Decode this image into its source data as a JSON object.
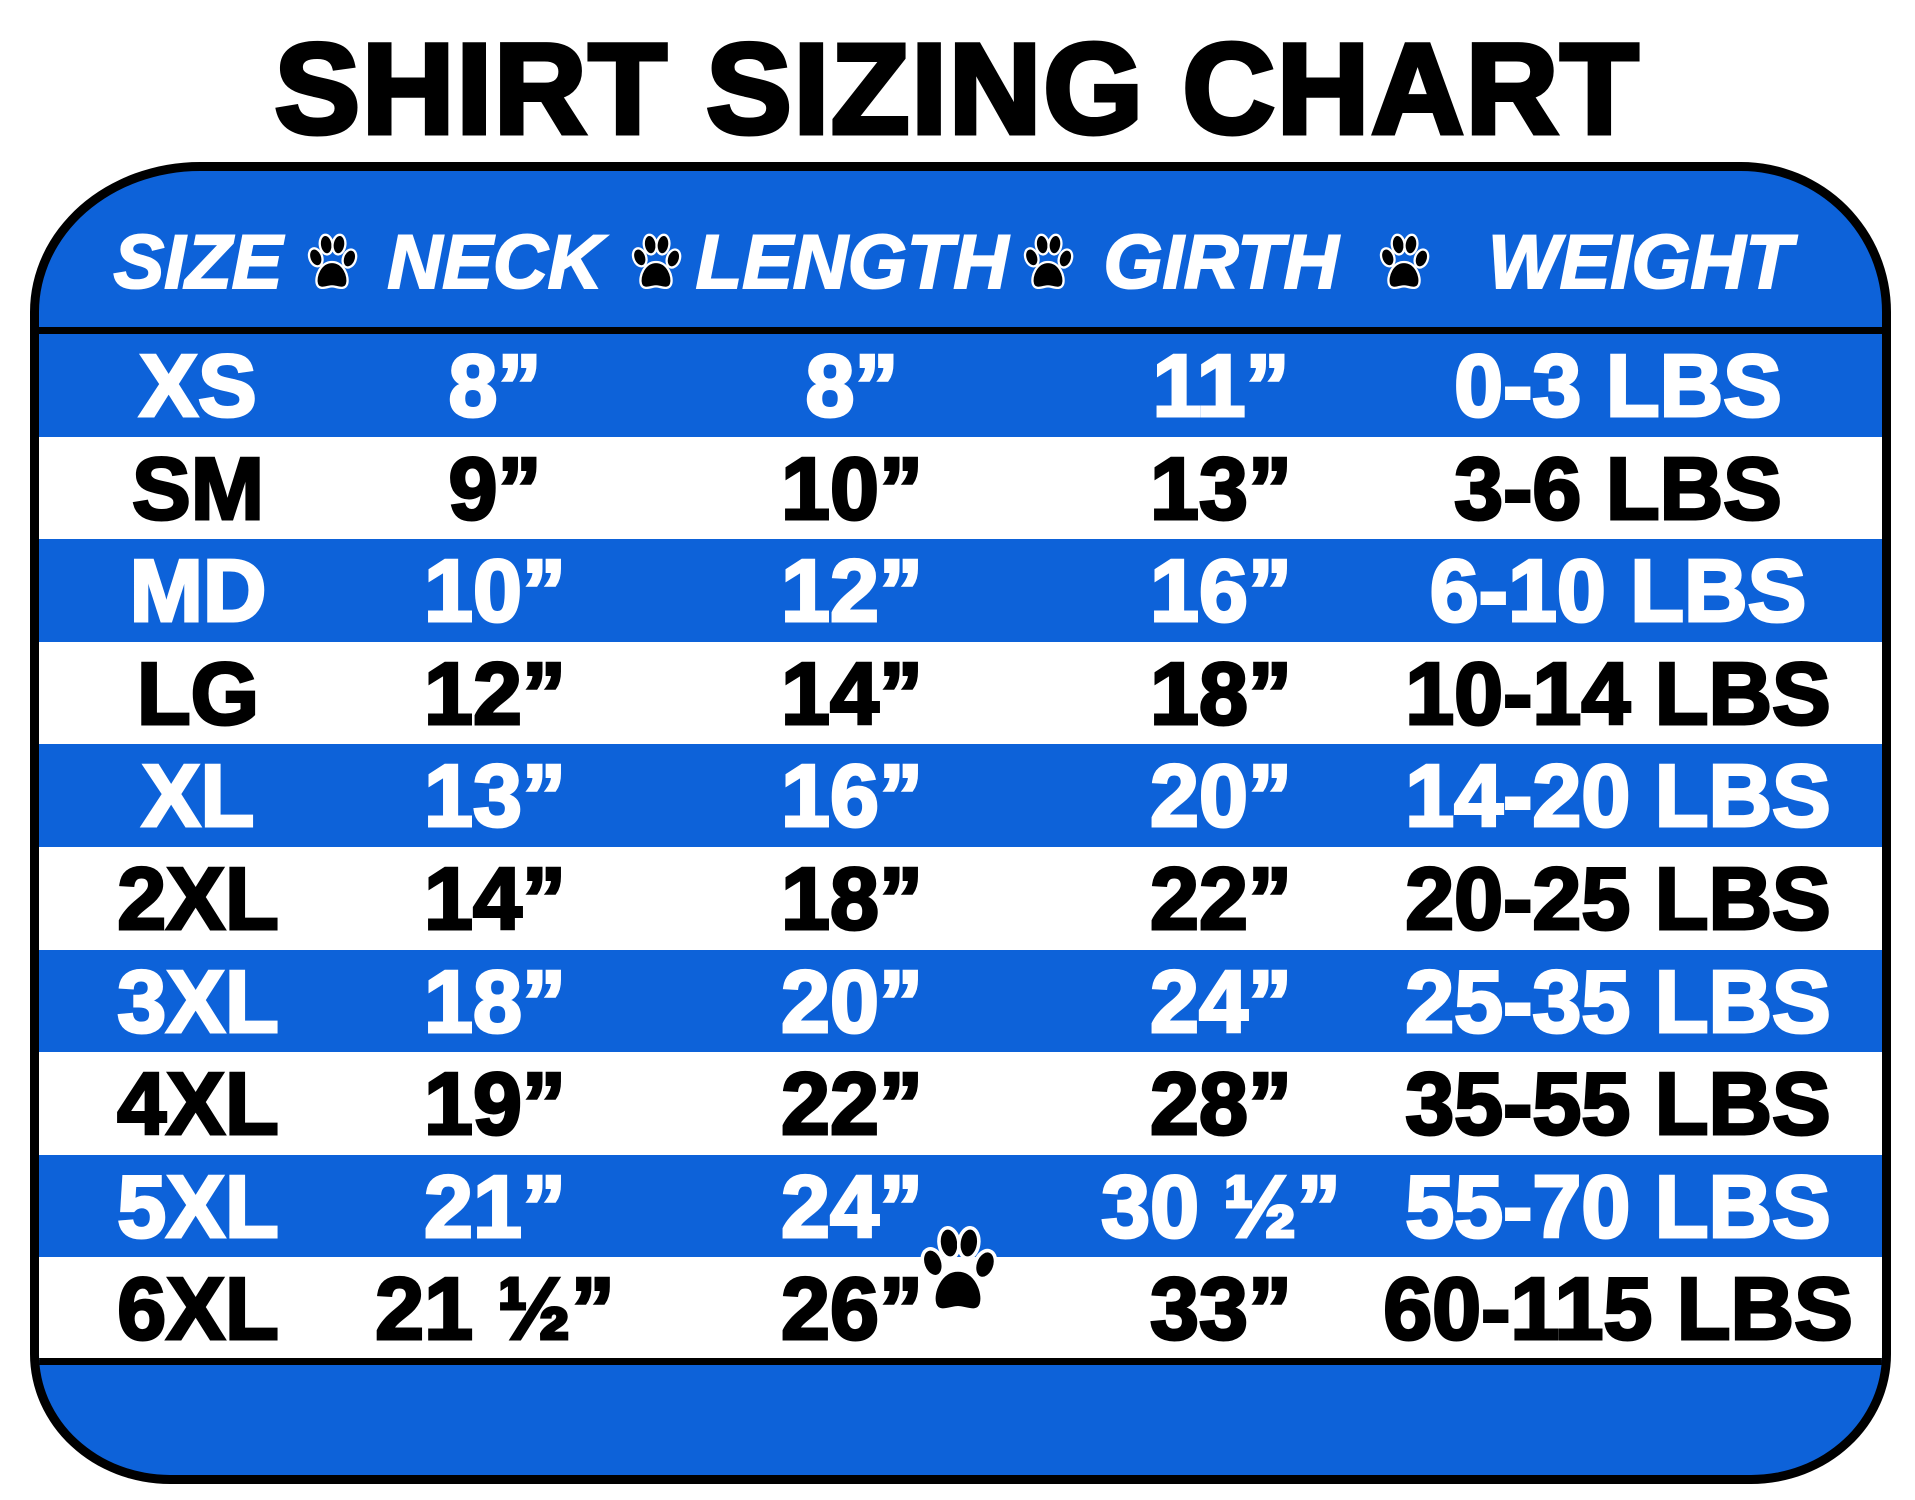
{
  "title": "SHIRT SIZING CHART",
  "colors": {
    "blue": "#0d62d9",
    "white": "#ffffff",
    "black": "#000000"
  },
  "icons": {
    "separator": "paw-print-icon",
    "footer": "paw-print-icon"
  },
  "headers": [
    "SIZE",
    "NECK",
    "LENGTH",
    "GIRTH",
    "WEIGHT"
  ],
  "rows": [
    {
      "size": "XS",
      "neck": "8”",
      "length": "8”",
      "girth": "11”",
      "weight": "0-3 LBS"
    },
    {
      "size": "SM",
      "neck": "9”",
      "length": "10”",
      "girth": "13”",
      "weight": "3-6 LBS"
    },
    {
      "size": "MD",
      "neck": "10”",
      "length": "12”",
      "girth": "16”",
      "weight": "6-10 LBS"
    },
    {
      "size": "LG",
      "neck": "12”",
      "length": "14”",
      "girth": "18”",
      "weight": "10-14 LBS"
    },
    {
      "size": "XL",
      "neck": "13”",
      "length": "16”",
      "girth": "20”",
      "weight": "14-20 LBS"
    },
    {
      "size": "2XL",
      "neck": "14”",
      "length": "18”",
      "girth": "22”",
      "weight": "20-25 LBS"
    },
    {
      "size": "3XL",
      "neck": "18”",
      "length": "20”",
      "girth": "24”",
      "weight": "25-35 LBS"
    },
    {
      "size": "4XL",
      "neck": "19”",
      "length": "22”",
      "girth": "28”",
      "weight": "35-55 LBS"
    },
    {
      "size": "5XL",
      "neck": "21”",
      "length": "24”",
      "girth": "30 ½”",
      "weight": "55-70 LBS"
    },
    {
      "size": "6XL",
      "neck": "21 ½”",
      "length": "26”",
      "girth": "33”",
      "weight": "60-115 LBS"
    }
  ]
}
